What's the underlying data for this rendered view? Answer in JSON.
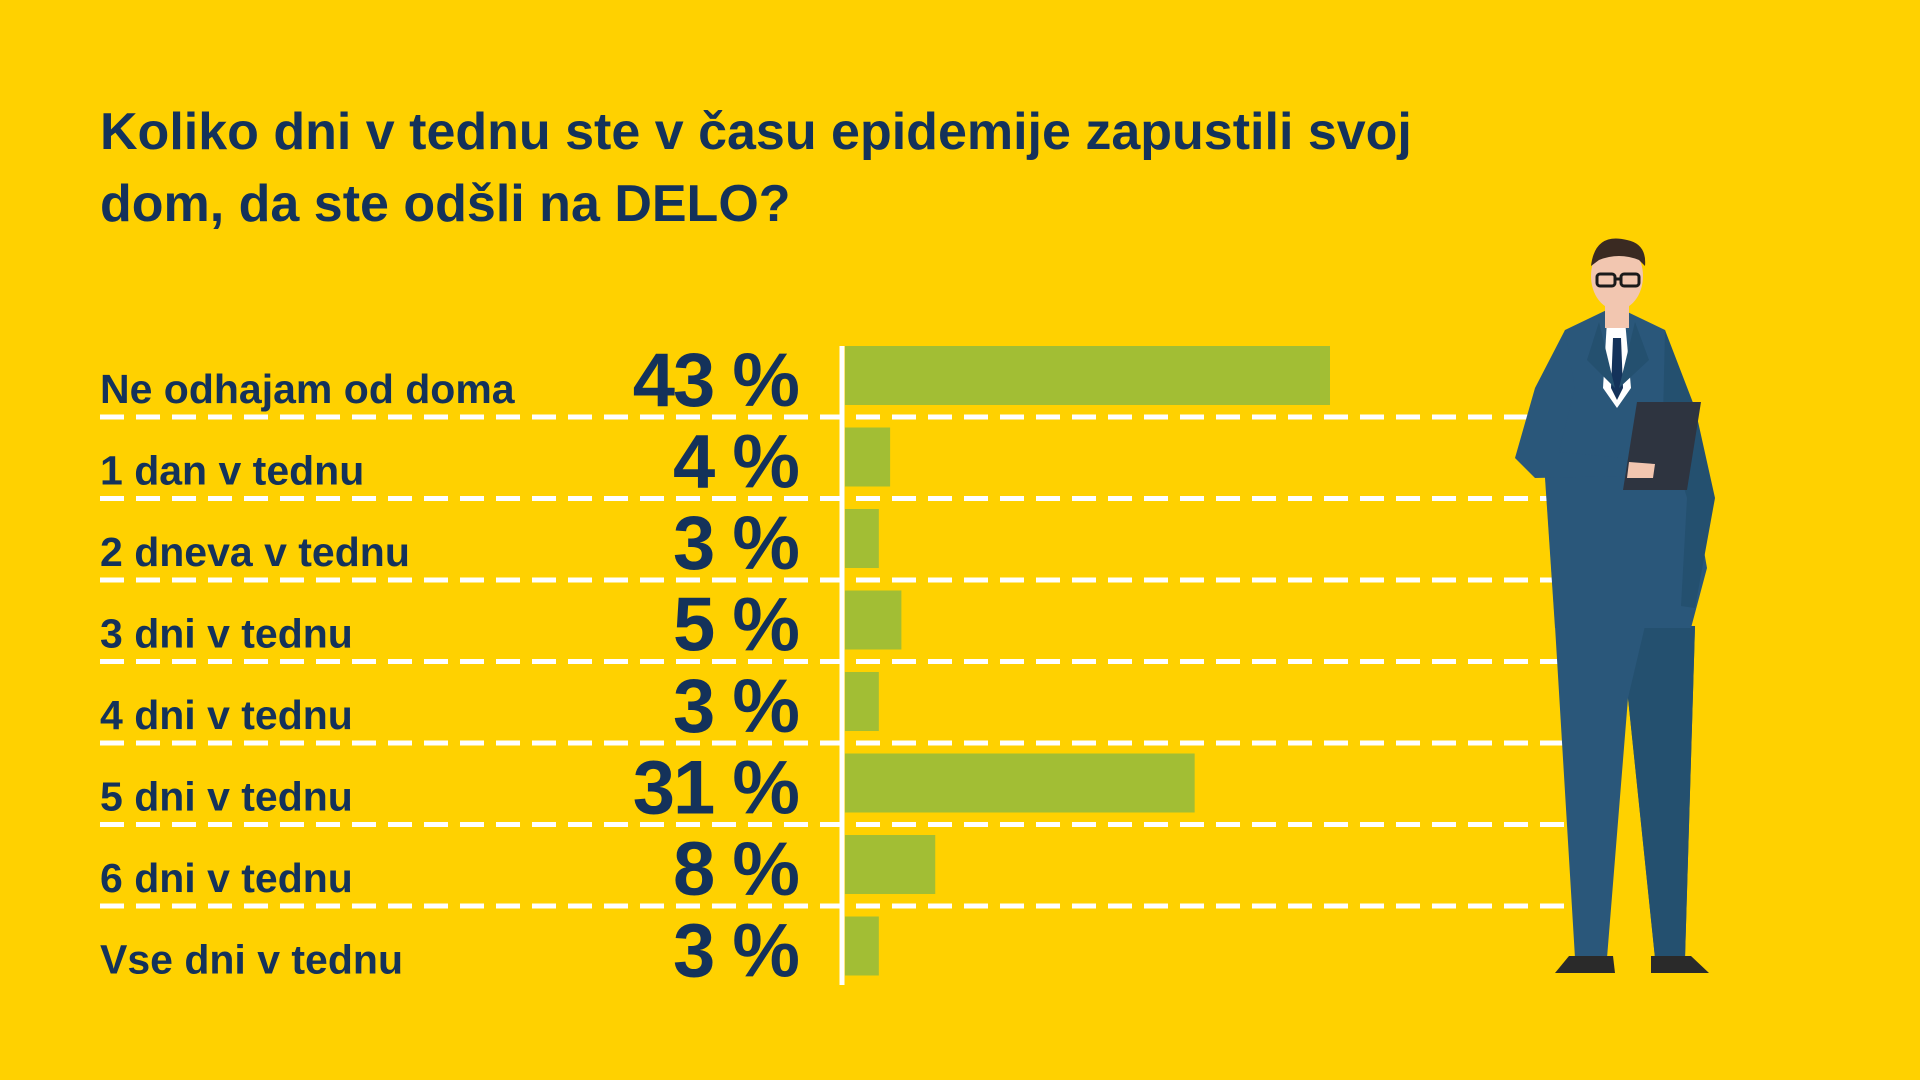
{
  "title": "Koliko dni v tednu ste v času epidemije zapustili svoj dom, da ste odšli na DELO?",
  "colors": {
    "background": "#FFD100",
    "bar": "#A2BE34",
    "text": "#14325A",
    "suit": "#2A577A",
    "divider": "#FFFFFF"
  },
  "chart_data": {
    "type": "bar",
    "orientation": "horizontal",
    "title": "Koliko dni v tednu ste v času epidemije zapustili svoj dom, da ste odšli na DELO?",
    "categories": [
      "Ne odhajam od doma",
      "1 dan v tednu",
      "2 dneva v tednu",
      "3 dni v tednu",
      "4 dni v tednu",
      "5 dni v tednu",
      "6 dni v tednu",
      "Vse dni v tednu"
    ],
    "values": [
      43,
      4,
      3,
      5,
      3,
      31,
      8,
      3
    ],
    "value_labels": [
      "43 %",
      "4 %",
      "3 %",
      "5 %",
      "3 %",
      "31 %",
      "8 %",
      "3 %"
    ],
    "unit": "%",
    "xlim": [
      0,
      43
    ],
    "grid": false,
    "legend": "none"
  },
  "illustration": {
    "icon": "businessman-with-tablet-icon"
  }
}
